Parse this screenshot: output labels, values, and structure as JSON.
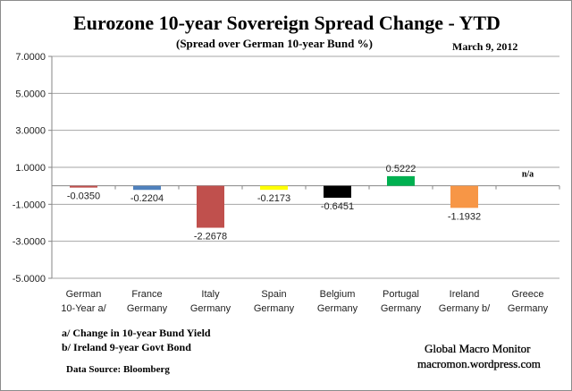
{
  "chart_data": {
    "type": "bar",
    "title": "Eurozone 10-year Sovereign Spread Change - YTD",
    "subtitle": "(Spread over German 10-year Bund %)",
    "date": "March 9,  2012",
    "categories": [
      [
        "German",
        "10-Year a/"
      ],
      [
        "France",
        "Germany"
      ],
      [
        "Italy",
        "Germany"
      ],
      [
        "Spain",
        "Germany"
      ],
      [
        "Belgium",
        "Germany"
      ],
      [
        "Portugal",
        "Germany"
      ],
      [
        "Ireland",
        "Germany b/"
      ],
      [
        "Greece",
        "Germany"
      ]
    ],
    "values": [
      -0.035,
      -0.2204,
      -2.2678,
      -0.2173,
      -0.6451,
      0.5222,
      -1.1932,
      null
    ],
    "data_labels": [
      "-0.0350",
      "-0.2204",
      "-2.2678",
      "-0.2173",
      "-0.6451",
      "0.5222",
      "-1.1932",
      "n/a"
    ],
    "colors": [
      "#c0504d",
      "#4f81bd",
      "#c0504d",
      "#ffff00",
      "#000000",
      "#00b050",
      "#f79646",
      null
    ],
    "ylim": [
      -5,
      7
    ],
    "yticks": [
      "7.0000",
      "5.0000",
      "3.0000",
      "1.0000",
      "-1.0000",
      "-3.0000",
      "-5.0000"
    ],
    "ytick_values": [
      7,
      5,
      3,
      1,
      -1,
      -3,
      -5
    ],
    "grid": true,
    "xlabel": "",
    "ylabel": ""
  },
  "notes": {
    "a": "a/  Change in 10-year Bund Yield",
    "b": "b/  Ireland 9-year Govt Bond",
    "source": "Data Source:  Bloomberg"
  },
  "brand": {
    "name": "Global Macro Monitor",
    "site": "macromon.wordpress.com"
  }
}
